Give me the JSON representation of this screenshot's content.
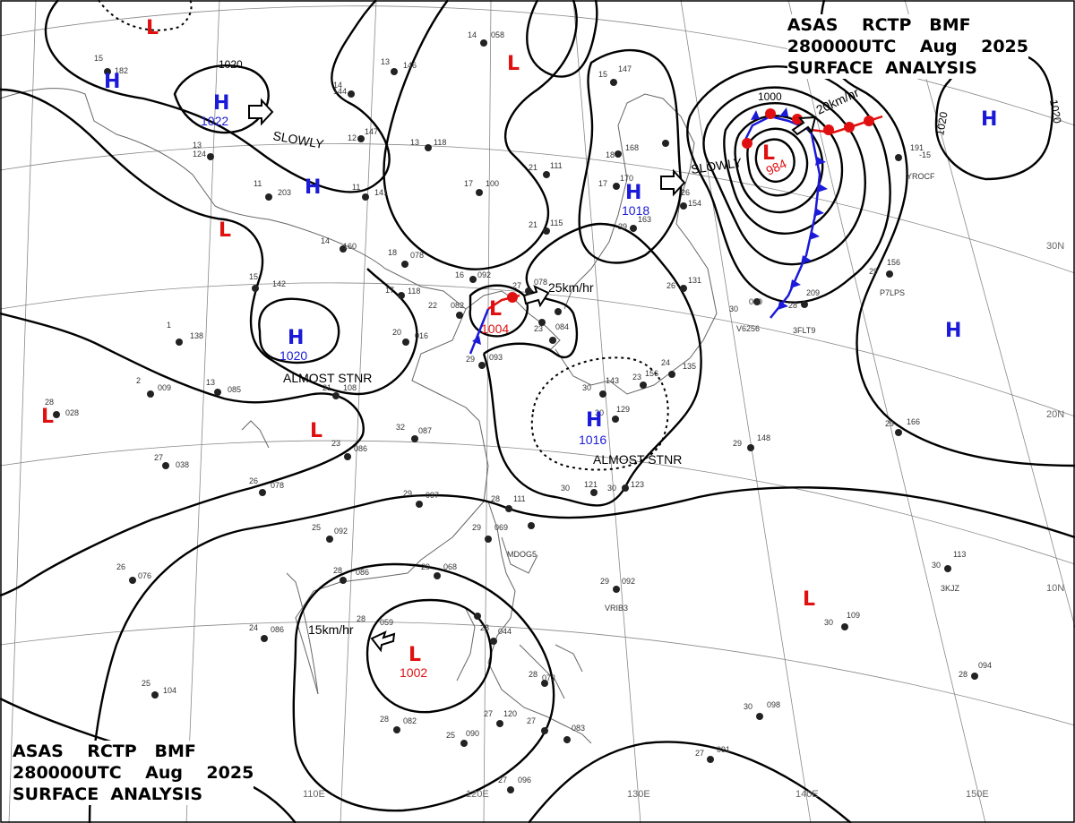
{
  "chart_header": {
    "line1": "ASAS    RCTP   BMF",
    "line2": "280000UTC    Aug    2025",
    "line3": "SURFACE  ANALYSIS"
  },
  "longitude_labels": [
    "110E",
    "120E",
    "130E",
    "140E",
    "150E"
  ],
  "latitude_labels": [
    "30N",
    "20N",
    "10N"
  ],
  "isobar_labels": [
    "1020",
    "1000",
    "1020",
    "1020"
  ],
  "pressure_centers": [
    {
      "type": "H",
      "value": "1022",
      "motion": "SLOWLY"
    },
    {
      "type": "H",
      "value": ""
    },
    {
      "type": "H",
      "value": ""
    },
    {
      "type": "L",
      "value": ""
    },
    {
      "type": "L",
      "value": ""
    },
    {
      "type": "L",
      "value": ""
    },
    {
      "type": "H",
      "value": "1020",
      "motion": "ALMOST STNR"
    },
    {
      "type": "L",
      "value": ""
    },
    {
      "type": "L",
      "value": "1004",
      "motion": "25km/hr"
    },
    {
      "type": "H",
      "value": "1018",
      "motion": "SLOWLY"
    },
    {
      "type": "L",
      "value": "984",
      "motion": "20km/hr"
    },
    {
      "type": "H",
      "value": ""
    },
    {
      "type": "H",
      "value": "1016",
      "motion": "ALMOST STNR"
    },
    {
      "type": "H",
      "value": ""
    },
    {
      "type": "L",
      "value": ""
    },
    {
      "type": "L",
      "value": "1002",
      "motion": "15km/hr"
    },
    {
      "type": "L",
      "value": ""
    }
  ],
  "station_plots": [
    {
      "temp": "15",
      "pressure": "182"
    },
    {
      "temp": "14",
      "pressure": "058"
    },
    {
      "temp": "13",
      "pressure": "146"
    },
    {
      "temp": "13",
      "pressure": "118"
    },
    {
      "temp": "14",
      "pressure": "144"
    },
    {
      "temp": "12",
      "pressure": "147"
    },
    {
      "temp": "13",
      "pressure": "124"
    },
    {
      "temp": "11",
      "pressure": "203"
    },
    {
      "temp": "11",
      "pressure": "141"
    },
    {
      "temp": "14",
      "pressure": "160"
    },
    {
      "temp": "18",
      "pressure": "078"
    },
    {
      "temp": "17",
      "pressure": "100"
    },
    {
      "temp": "21",
      "pressure": "111"
    },
    {
      "temp": "21",
      "pressure": "115"
    },
    {
      "temp": "15",
      "pressure": "147"
    },
    {
      "temp": "18",
      "pressure": "168"
    },
    {
      "temp": "17",
      "pressure": "170"
    },
    {
      "temp": "29",
      "pressure": "163"
    },
    {
      "temp": "15",
      "pressure": "142"
    },
    {
      "temp": "17",
      "pressure": "118"
    },
    {
      "temp": "16",
      "pressure": "092"
    },
    {
      "temp": "22",
      "pressure": "082"
    },
    {
      "temp": "1",
      "pressure": "138"
    },
    {
      "temp": "20",
      "pressure": "016"
    },
    {
      "temp": "29",
      "pressure": "093"
    },
    {
      "temp": "13",
      "pressure": "085"
    },
    {
      "temp": "21",
      "pressure": "108"
    },
    {
      "temp": "2",
      "pressure": "009"
    },
    {
      "temp": "28",
      "pressure": "028"
    },
    {
      "temp": "32",
      "pressure": "087"
    },
    {
      "temp": "23",
      "pressure": "086"
    },
    {
      "temp": "27",
      "pressure": "038"
    },
    {
      "temp": "26",
      "pressure": "078"
    },
    {
      "temp": "29",
      "pressure": "097"
    },
    {
      "temp": "28",
      "pressure": "111"
    },
    {
      "temp": "25",
      "pressure": "092"
    },
    {
      "temp": "29",
      "pressure": "069"
    },
    {
      "temp": "28",
      "pressure": "086"
    },
    {
      "temp": "29",
      "pressure": "068"
    },
    {
      "temp": "26",
      "pressure": "076"
    },
    {
      "temp": "28",
      "pressure": "059"
    },
    {
      "temp": "24",
      "pressure": "086"
    },
    {
      "temp": "25",
      "pressure": "104"
    },
    {
      "temp": "28",
      "pressure": "044"
    },
    {
      "temp": "28",
      "pressure": "082"
    },
    {
      "temp": "27",
      "pressure": "120"
    },
    {
      "temp": "25",
      "pressure": "090"
    },
    {
      "temp": "27",
      "pressure": "083"
    },
    {
      "temp": "27",
      "pressure": "096"
    },
    {
      "temp": "28",
      "pressure": "073"
    },
    {
      "temp": "29",
      "pressure": "092"
    },
    {
      "temp": "27",
      "pressure": "091"
    },
    {
      "temp": "30",
      "pressure": "109"
    },
    {
      "temp": "30",
      "pressure": "098"
    },
    {
      "temp": "28",
      "pressure": "094"
    },
    {
      "temp": "30",
      "pressure": "113"
    },
    {
      "temp": "29",
      "pressure": "148"
    },
    {
      "temp": "29",
      "pressure": "166"
    },
    {
      "temp": "29",
      "pressure": "156"
    },
    {
      "temp": "30",
      "pressure": "090"
    },
    {
      "temp": "28",
      "pressure": "209"
    },
    {
      "temp": "26",
      "pressure": "154"
    },
    {
      "temp": "26",
      "pressure": "131"
    },
    {
      "temp": "24",
      "pressure": "135"
    },
    {
      "temp": "30",
      "pressure": "121"
    },
    {
      "temp": "30",
      "pressure": "123"
    },
    {
      "temp": "30",
      "pressure": "143"
    },
    {
      "temp": "30",
      "pressure": "129"
    },
    {
      "temp": "23",
      "pressure": "156"
    },
    {
      "temp": "191",
      "pressure": "-15"
    },
    {
      "temp": "27",
      "pressure": "078"
    },
    {
      "temp": "23",
      "pressure": "084"
    }
  ],
  "station_ids": [
    "YROCF",
    "P7LPS",
    "V6256",
    "3FLT9",
    "VRIB3",
    "3KJZ",
    "MDOG5"
  ]
}
